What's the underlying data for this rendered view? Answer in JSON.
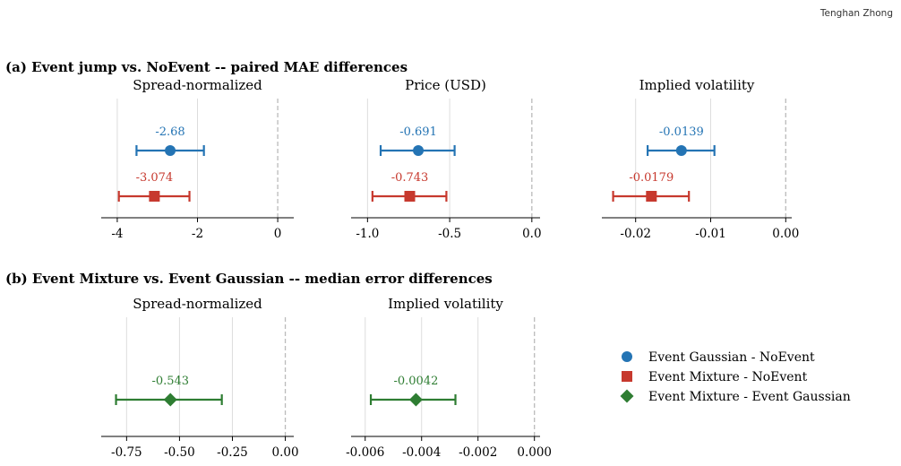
{
  "header": {
    "author": "Tenghan Zhong"
  },
  "colors": {
    "gaussian": "#2474b4",
    "mixture": "#c7392e",
    "mix_vs_gauss": "#2e7d32",
    "grid": "#dddddd",
    "zero_line": "#bbbbbb",
    "axis": "#000000"
  },
  "sections": [
    {
      "id": "a",
      "title": "(a) Event jump vs. NoEvent -- paired MAE differences"
    },
    {
      "id": "b",
      "title": "(b) Event Mixture vs. Event Gaussian -- median error differences"
    }
  ],
  "legend": {
    "placement": "right",
    "items": [
      {
        "label": "Event Gaussian - NoEvent",
        "marker": "circle",
        "color": "#2474b4"
      },
      {
        "label": "Event Mixture - NoEvent",
        "marker": "square",
        "color": "#c7392e"
      },
      {
        "label": "Event Mixture - Event Gaussian",
        "marker": "diamond",
        "color": "#2e7d32"
      }
    ]
  },
  "chart_data": [
    {
      "type": "scatter",
      "section": "a",
      "title": "Spread-normalized",
      "xlim": [
        -4.4,
        0.4
      ],
      "zero_line": true,
      "grid": true,
      "xticks": [
        -4,
        -2,
        0
      ],
      "xtick_labels": [
        "-4",
        "-2",
        "0"
      ],
      "series": [
        {
          "name": "Event Gaussian - NoEvent",
          "estimate": -2.68,
          "ci": [
            -3.52,
            -1.84
          ],
          "label": "-2.68",
          "marker": "circle",
          "color": "#2474b4"
        },
        {
          "name": "Event Mixture - NoEvent",
          "estimate": -3.074,
          "ci": [
            -3.96,
            -2.2
          ],
          "label": "-3.074",
          "marker": "square",
          "color": "#c7392e"
        }
      ]
    },
    {
      "type": "scatter",
      "section": "a",
      "title": "Price (USD)",
      "xlim": [
        -1.1,
        0.05
      ],
      "zero_line": true,
      "grid": true,
      "xticks": [
        -1.0,
        -0.5,
        0.0
      ],
      "xtick_labels": [
        "-1.0",
        "-0.5",
        "0.0"
      ],
      "series": [
        {
          "name": "Event Gaussian - NoEvent",
          "estimate": -0.691,
          "ci": [
            -0.92,
            -0.47
          ],
          "label": "-0.691",
          "marker": "circle",
          "color": "#2474b4"
        },
        {
          "name": "Event Mixture - NoEvent",
          "estimate": -0.743,
          "ci": [
            -0.97,
            -0.52
          ],
          "label": "-0.743",
          "marker": "square",
          "color": "#c7392e"
        }
      ]
    },
    {
      "type": "scatter",
      "section": "a",
      "title": "Implied volatility",
      "xlim": [
        -0.0245,
        0.0008
      ],
      "zero_line": true,
      "grid": true,
      "xticks": [
        -0.02,
        -0.01,
        0.0
      ],
      "xtick_labels": [
        "-0.02",
        "-0.01",
        "0.00"
      ],
      "series": [
        {
          "name": "Event Gaussian - NoEvent",
          "estimate": -0.0139,
          "ci": [
            -0.0184,
            -0.0095
          ],
          "label": "-0.0139",
          "marker": "circle",
          "color": "#2474b4"
        },
        {
          "name": "Event Mixture - NoEvent",
          "estimate": -0.0179,
          "ci": [
            -0.023,
            -0.0129
          ],
          "label": "-0.0179",
          "marker": "square",
          "color": "#c7392e"
        }
      ]
    },
    {
      "type": "scatter",
      "section": "b",
      "title": "Spread-normalized",
      "xlim": [
        -0.87,
        0.04
      ],
      "zero_line": true,
      "grid": true,
      "xticks": [
        -0.75,
        -0.5,
        -0.25,
        0.0
      ],
      "xtick_labels": [
        "-0.75",
        "-0.50",
        "-0.25",
        "0.00"
      ],
      "series": [
        {
          "name": "Event Mixture - Event Gaussian",
          "estimate": -0.543,
          "ci": [
            -0.8,
            -0.3
          ],
          "label": "-0.543",
          "marker": "diamond",
          "color": "#2e7d32"
        }
      ]
    },
    {
      "type": "scatter",
      "section": "b",
      "title": "Implied volatility",
      "xlim": [
        -0.0065,
        0.0002
      ],
      "zero_line": true,
      "grid": true,
      "xticks": [
        -0.006,
        -0.004,
        -0.002,
        0.0
      ],
      "xtick_labels": [
        "-0.006",
        "-0.004",
        "-0.002",
        "0.000"
      ],
      "series": [
        {
          "name": "Event Mixture - Event Gaussian",
          "estimate": -0.0042,
          "ci": [
            -0.0058,
            -0.0028
          ],
          "label": "-0.0042",
          "marker": "diamond",
          "color": "#2e7d32"
        }
      ]
    }
  ]
}
